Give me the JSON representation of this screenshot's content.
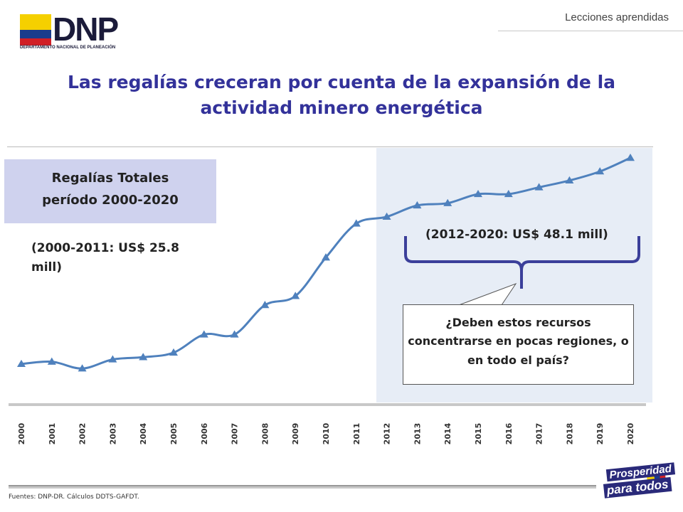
{
  "header": {
    "logo_text": "DNP",
    "logo_subtitle": "DEPARTAMENTO NACIONAL DE PLANEACIÓN",
    "section": "Lecciones aprendidas"
  },
  "title": "Las regalías creceran por cuenta de la expansión de la actividad minero energética",
  "box": {
    "line1": "Regalías Totales",
    "line2": "período 2000-2020"
  },
  "note_left": "(2000-2011: US$ 25.8 mill)",
  "note_right": "(2012-2020: US$ 48.1 mill)",
  "callout": "¿Deben estos recursos concentrarse en pocas regiones, o en todo el país?",
  "footer": "Fuentes: DNP-DR.  Cálculos DDTS-GAFDT.",
  "badge": {
    "line1": "Prosperidad",
    "line2": "para todos"
  },
  "colors": {
    "title": "#33329a",
    "line": "#4f81bd",
    "brace": "#3b3f9a",
    "shade": "#e7edf6",
    "box": "#cfd2ee"
  },
  "chart_data": {
    "type": "line",
    "title": "",
    "xlabel": "",
    "ylabel": "",
    "x": [
      "2000",
      "2001",
      "2002",
      "2003",
      "2004",
      "2005",
      "2006",
      "2007",
      "2008",
      "2009",
      "2010",
      "2011",
      "2012",
      "2013",
      "2014",
      "2015",
      "2016",
      "2017",
      "2018",
      "2019",
      "2020"
    ],
    "series": [
      {
        "values": [
          0.17,
          0.18,
          0.15,
          0.19,
          0.2,
          0.22,
          0.3,
          0.3,
          0.43,
          0.47,
          0.64,
          0.79,
          0.82,
          0.87,
          0.88,
          0.92,
          0.92,
          0.95,
          0.98,
          1.02,
          1.08
        ]
      }
    ],
    "ylim": [
      0,
      1.15
    ],
    "grid": false,
    "legend": "none",
    "shaded_range": [
      "2012",
      "2020"
    ]
  }
}
